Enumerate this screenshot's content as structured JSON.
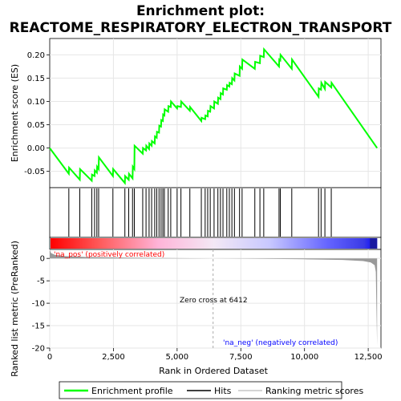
{
  "title_line1": "Enrichment plot:",
  "title_line2": "REACTOME_RESPIRATORY_ELECTRON_TRANSPORT",
  "colors": {
    "es_line": "#00ff00",
    "hits": "#000000",
    "pos_label": "#ff0000",
    "neg_label": "#0000ff",
    "zero_cross_line": "#aaaaaa",
    "metric_fill": "#999999"
  },
  "chart_data": [
    {
      "type": "line",
      "name": "enrichment-profile",
      "ylabel": "Enrichment score (ES)",
      "xlim": [
        0,
        13000
      ],
      "ylim": [
        -0.085,
        0.235
      ],
      "yticks": [
        -0.05,
        0.0,
        0.05,
        0.1,
        0.15,
        0.2
      ],
      "ytick_labels": [
        "-0.05",
        "0.00",
        "0.05",
        "0.10",
        "0.15",
        "0.20"
      ],
      "grid": true,
      "series": [
        {
          "name": "Enrichment profile",
          "x": [
            0,
            750,
            760,
            1180,
            1190,
            1650,
            1660,
            1760,
            1770,
            1850,
            1860,
            1920,
            1930,
            2480,
            2490,
            2950,
            2960,
            3100,
            3110,
            3250,
            3260,
            3320,
            3330,
            3650,
            3660,
            3780,
            3790,
            3900,
            3910,
            4000,
            4010,
            4120,
            4130,
            4200,
            4210,
            4290,
            4300,
            4370,
            4380,
            4440,
            4450,
            4500,
            4510,
            4650,
            4660,
            4750,
            4760,
            5000,
            5010,
            5150,
            5160,
            5500,
            5510,
            5950,
            5960,
            6100,
            6110,
            6200,
            6210,
            6300,
            6310,
            6450,
            6460,
            6600,
            6610,
            6700,
            6710,
            6800,
            6810,
            6950,
            6960,
            7050,
            7060,
            7150,
            7160,
            7250,
            7260,
            7450,
            7460,
            7550,
            7560,
            8050,
            8060,
            8250,
            8260,
            8400,
            8410,
            9000,
            9010,
            9050,
            9060,
            9500,
            9510,
            10550,
            10560,
            10650,
            10660,
            10800,
            10810,
            11050,
            11060,
            12850
          ],
          "y": [
            0.0,
            -0.055,
            -0.042,
            -0.068,
            -0.045,
            -0.07,
            -0.057,
            -0.06,
            -0.048,
            -0.053,
            -0.04,
            -0.045,
            -0.02,
            -0.06,
            -0.045,
            -0.075,
            -0.06,
            -0.068,
            -0.055,
            -0.065,
            -0.04,
            -0.045,
            0.005,
            -0.012,
            0.0,
            -0.005,
            0.005,
            -0.002,
            0.01,
            0.005,
            0.015,
            0.01,
            0.025,
            0.022,
            0.035,
            0.033,
            0.048,
            0.046,
            0.06,
            0.058,
            0.072,
            0.07,
            0.083,
            0.078,
            0.09,
            0.088,
            0.1,
            0.085,
            0.09,
            0.088,
            0.1,
            0.08,
            0.088,
            0.058,
            0.065,
            0.062,
            0.07,
            0.068,
            0.08,
            0.078,
            0.09,
            0.085,
            0.1,
            0.095,
            0.108,
            0.105,
            0.118,
            0.115,
            0.128,
            0.125,
            0.135,
            0.132,
            0.14,
            0.137,
            0.15,
            0.145,
            0.16,
            0.155,
            0.175,
            0.17,
            0.19,
            0.17,
            0.185,
            0.182,
            0.198,
            0.195,
            0.212,
            0.175,
            0.19,
            0.188,
            0.2,
            0.17,
            0.19,
            0.11,
            0.128,
            0.125,
            0.14,
            0.127,
            0.142,
            0.13,
            0.14,
            0.0
          ]
        }
      ]
    },
    {
      "type": "scatter",
      "name": "hits",
      "xlim": [
        0,
        13000
      ],
      "hit_positions": [
        750,
        1180,
        1650,
        1760,
        1850,
        1920,
        2480,
        2950,
        3100,
        3250,
        3320,
        3650,
        3780,
        3900,
        4000,
        4120,
        4200,
        4290,
        4370,
        4440,
        4500,
        4650,
        4750,
        5000,
        5150,
        5500,
        5950,
        6100,
        6200,
        6300,
        6450,
        6600,
        6700,
        6800,
        6950,
        7050,
        7150,
        7250,
        7450,
        7550,
        8050,
        8250,
        8400,
        9000,
        9050,
        9500,
        10550,
        10650,
        10800,
        11050
      ]
    },
    {
      "type": "area",
      "name": "ranked-list-metric",
      "xlabel": "Rank in Ordered Dataset",
      "ylabel": "Ranked list metric (PreRanked)",
      "xlim": [
        0,
        13000
      ],
      "ylim": [
        -20,
        2
      ],
      "yticks": [
        0,
        -5,
        -10,
        -15,
        -20
      ],
      "ytick_labels": [
        "0",
        "-5",
        "-10",
        "-15",
        "-20"
      ],
      "xticks": [
        0,
        2500,
        5000,
        7500,
        10000,
        12500
      ],
      "xtick_labels": [
        "0",
        "2,500",
        "5,000",
        "7,500",
        "10,000",
        "12,500"
      ],
      "grid": true,
      "x": [
        0,
        50,
        200,
        600,
        1500,
        3000,
        5000,
        6412,
        8000,
        10000,
        11500,
        12300,
        12600,
        12750,
        12800,
        12850
      ],
      "values": [
        2.0,
        1.2,
        0.8,
        0.5,
        0.3,
        0.15,
        0.05,
        0.0,
        -0.08,
        -0.2,
        -0.35,
        -0.6,
        -0.9,
        -1.5,
        -3.0,
        -19.5
      ],
      "zero_cross": 6412,
      "zero_cross_label": "Zero cross at 6412",
      "pos_label": "'na_pos' (positively correlated)",
      "neg_label": "'na_neg' (negatively correlated)"
    }
  ],
  "legend": {
    "items": [
      {
        "label": "Enrichment profile",
        "color": "#00ff00"
      },
      {
        "label": "Hits",
        "color": "#000000"
      },
      {
        "label": "Ranking metric scores",
        "color": "#aaaaaa"
      }
    ]
  }
}
